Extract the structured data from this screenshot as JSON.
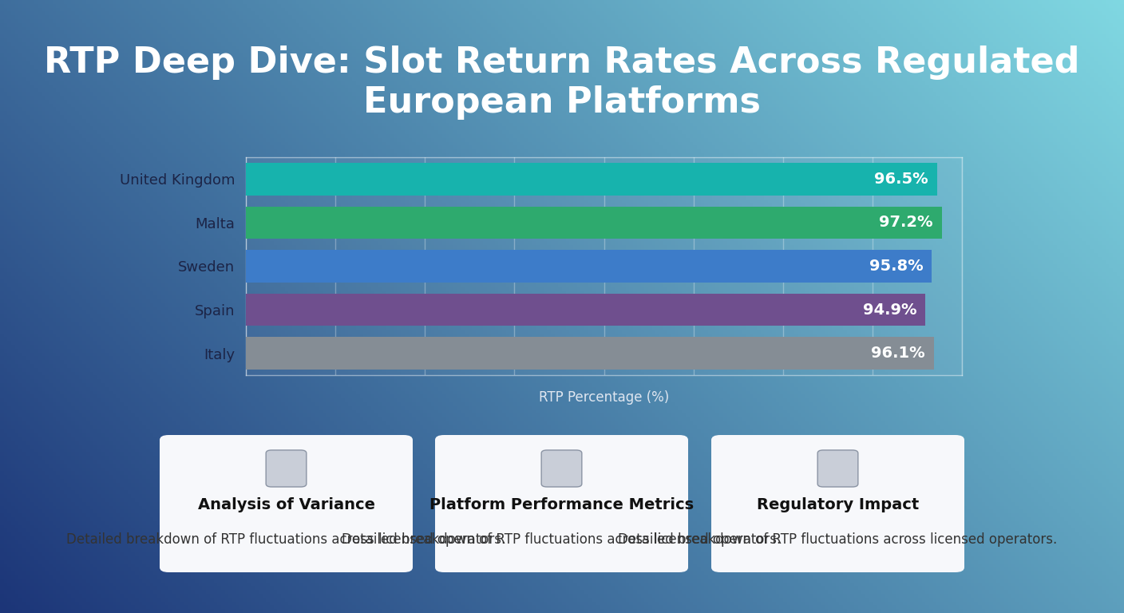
{
  "chart_data": {
    "type": "bar",
    "orientation": "horizontal",
    "title": "RTP Deep Dive: Slot Return Rates Across Regulated European Platforms",
    "x_label": "RTP Percentage (%)",
    "categories": [
      "United Kingdom",
      "Malta",
      "Sweden",
      "Spain",
      "Italy"
    ],
    "values": [
      96.5,
      97.2,
      95.8,
      94.9,
      96.1
    ],
    "value_labels": [
      "96.5%",
      "97.2%",
      "95.8%",
      "94.9%",
      "96.1%"
    ],
    "colors": [
      "#17b3ad",
      "#2eaa6e",
      "#3d7cc9",
      "#6f4f8e",
      "#858d95"
    ],
    "xlim": [
      0,
      100
    ],
    "xticks": [
      0,
      12.5,
      25,
      37.5,
      50,
      62.5,
      75,
      87.5,
      100
    ],
    "grid": true,
    "data_labels": true,
    "tick_labels": "y"
  },
  "cards": [
    {
      "title": "Analysis of Variance",
      "text": "Detailed breakdown of RTP fluctuations across licensed operators."
    },
    {
      "title": "Platform Performance Metrics",
      "text": "Detailed breakdown of RTP fluctuations across licensed operators."
    },
    {
      "title": "Regulatory Impact",
      "text": "Detailed breakdown of RTP fluctuations across licensed operators."
    }
  ]
}
